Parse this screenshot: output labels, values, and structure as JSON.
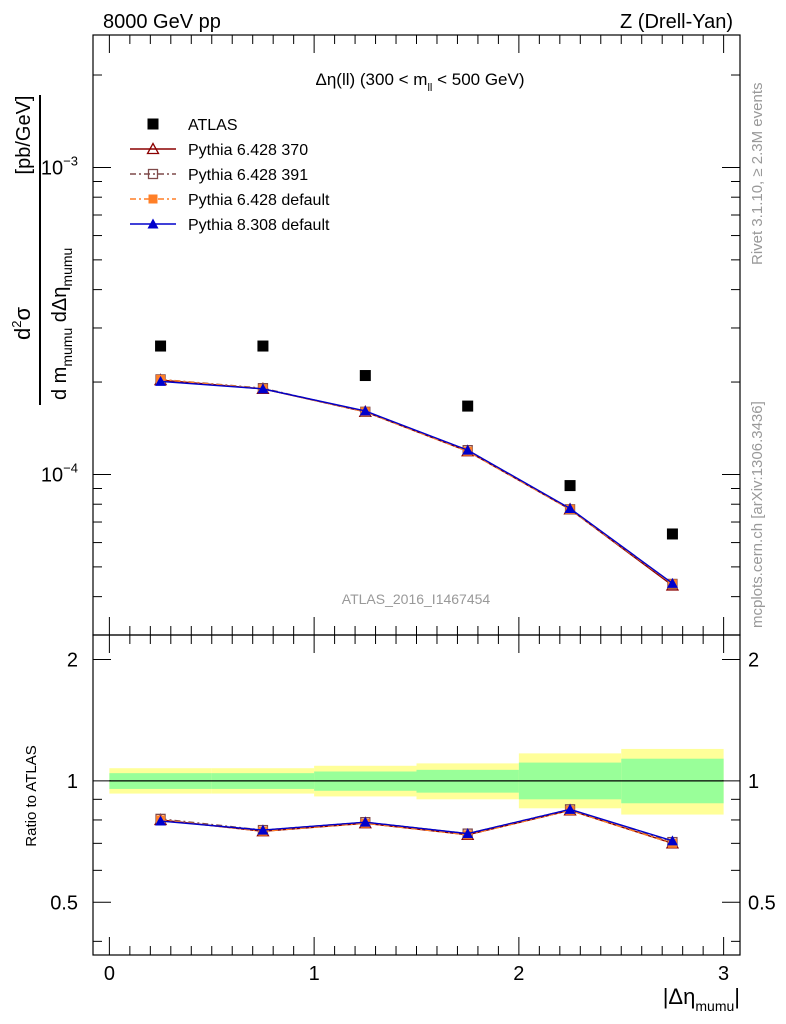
{
  "header": {
    "left": "8000 GeV pp",
    "right": "Z (Drell-Yan)"
  },
  "side_labels": {
    "rivet": "Rivet 3.1.10, ≥ 2.3M events",
    "mcplots": "mcplots.cern.ch [arXiv:1306.3436]"
  },
  "watermark": "ATLAS_2016_I1467454",
  "plot_title": {
    "main": "Δη(ll) (300 < m",
    "sub": "ll",
    "end": " < 500 GeV)"
  },
  "axes": {
    "ylabel_main": {
      "unit": "[pb/GeV]",
      "num": "d",
      "num_sup": "2",
      "num_sigma": "σ",
      "den_d": "d m",
      "den_sub1": "mumu",
      "den_mid": " dΔη",
      "den_sub2": "mumu"
    },
    "ylabel_ratio": "Ratio to ATLAS",
    "xlabel": {
      "pre": "|Δη",
      "sub": "mumu",
      "post": "|"
    },
    "x_ticks": [
      "0",
      "1",
      "2",
      "3"
    ],
    "y_main_ticks": [
      {
        "value": 0.001,
        "base": "10",
        "exp": "−3"
      },
      {
        "value": 0.0001,
        "base": "10",
        "exp": "−4"
      }
    ],
    "y_ratio_ticks": [
      "0.5",
      "1",
      "2"
    ]
  },
  "legend": [
    {
      "label": "ATLAS",
      "color": "#000000",
      "marker": "square-filled",
      "line": "none"
    },
    {
      "label": "Pythia 6.428 370",
      "color": "#8b0000",
      "marker": "triangle-open",
      "line": "solid"
    },
    {
      "label": "Pythia 6.428 391",
      "color": "#7f4a4a",
      "marker": "square-open",
      "line": "dashdot"
    },
    {
      "label": "Pythia 6.428 default",
      "color": "#ff7f27",
      "marker": "square-filled",
      "line": "dashdot"
    },
    {
      "label": "Pythia 8.308 default",
      "color": "#0000cc",
      "marker": "triangle-filled",
      "line": "solid"
    }
  ],
  "chart_data": {
    "type": "scatter",
    "x": [
      0.25,
      0.75,
      1.25,
      1.75,
      2.25,
      2.75
    ],
    "x_edges": [
      0,
      0.5,
      1,
      1.5,
      2,
      2.5,
      3
    ],
    "xlim": [
      -0.08,
      3.08
    ],
    "ylim_main": [
      3e-05,
      0.0027
    ],
    "y_scale_main": "log",
    "ylim_ratio": [
      0.37,
      2.3
    ],
    "y_scale_ratio": "log",
    "series": [
      {
        "name": "ATLAS",
        "values": [
          0.000262,
          0.000262,
          0.00021,
          0.000167,
          9.2e-05,
          6.4e-05
        ]
      },
      {
        "name": "Pythia 6.428 370",
        "values": [
          0.000203,
          0.00019,
          0.00016,
          0.000119,
          7.7e-05,
          4.35e-05
        ]
      },
      {
        "name": "Pythia 6.428 391",
        "values": [
          0.000204,
          0.000191,
          0.00016,
          0.00012,
          7.7e-05,
          4.4e-05
        ]
      },
      {
        "name": "Pythia 6.428 default",
        "values": [
          0.000204,
          0.00019,
          0.00016,
          0.000119,
          7.7e-05,
          4.4e-05
        ]
      },
      {
        "name": "Pythia 8.308 default",
        "values": [
          0.000201,
          0.00019,
          0.000161,
          0.00012,
          7.75e-05,
          4.42e-05
        ]
      }
    ],
    "ratio": {
      "reference": 1,
      "band_green": [
        [
          0.955,
          1.045
        ],
        [
          0.955,
          1.045
        ],
        [
          0.945,
          1.055
        ],
        [
          0.935,
          1.065
        ],
        [
          0.9,
          1.11
        ],
        [
          0.88,
          1.135
        ]
      ],
      "band_yellow": [
        [
          0.93,
          1.075
        ],
        [
          0.93,
          1.075
        ],
        [
          0.915,
          1.09
        ],
        [
          0.9,
          1.105
        ],
        [
          0.855,
          1.17
        ],
        [
          0.825,
          1.2
        ]
      ],
      "series": [
        {
          "name": "Pythia 6.428 370",
          "values": [
            0.8,
            0.75,
            0.785,
            0.735,
            0.845,
            0.7
          ]
        },
        {
          "name": "Pythia 6.428 391",
          "values": [
            0.805,
            0.755,
            0.79,
            0.74,
            0.85,
            0.705
          ]
        },
        {
          "name": "Pythia 6.428 default",
          "values": [
            0.8,
            0.75,
            0.785,
            0.735,
            0.845,
            0.7
          ]
        },
        {
          "name": "Pythia 8.308 default",
          "values": [
            0.795,
            0.755,
            0.79,
            0.74,
            0.85,
            0.71
          ]
        }
      ]
    }
  }
}
